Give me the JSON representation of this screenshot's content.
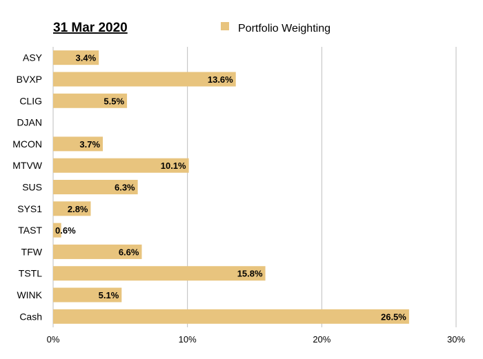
{
  "chart_data": {
    "type": "bar",
    "orientation": "horizontal",
    "title": "31 Mar 2020",
    "categories": [
      "ASY",
      "BVXP",
      "CLIG",
      "DJAN",
      "MCON",
      "MTVW",
      "SUS",
      "SYS1",
      "TAST",
      "TFW",
      "TSTL",
      "WINK",
      "Cash"
    ],
    "series": [
      {
        "name": "Portfolio Weighting",
        "color": "#e8c47e",
        "values": [
          3.4,
          13.6,
          5.5,
          0,
          3.7,
          10.1,
          6.3,
          2.8,
          0.6,
          6.6,
          15.8,
          5.1,
          26.5
        ],
        "labels": [
          "3.4%",
          "13.6%",
          "5.5%",
          "",
          "3.7%",
          "10.1%",
          "6.3%",
          "2.8%",
          "0.6%",
          "6.6%",
          "15.8%",
          "5.1%",
          "26.5%"
        ]
      }
    ],
    "xlim": [
      0,
      30
    ],
    "xticks": [
      0,
      10,
      20,
      30
    ],
    "xtick_labels": [
      "0%",
      "10%",
      "20%",
      "30%"
    ],
    "grid": true,
    "legend_position": "top"
  }
}
